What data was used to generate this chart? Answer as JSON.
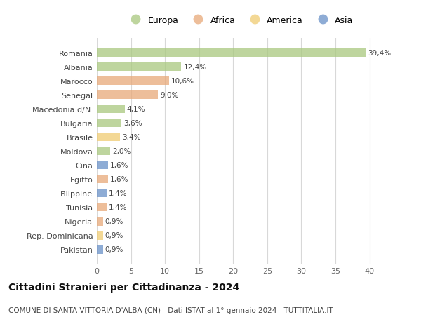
{
  "countries": [
    "Romania",
    "Albania",
    "Marocco",
    "Senegal",
    "Macedonia d/N.",
    "Bulgaria",
    "Brasile",
    "Moldova",
    "Cina",
    "Egitto",
    "Filippine",
    "Tunisia",
    "Nigeria",
    "Rep. Dominicana",
    "Pakistan"
  ],
  "values": [
    39.4,
    12.4,
    10.6,
    9.0,
    4.1,
    3.6,
    3.4,
    2.0,
    1.6,
    1.6,
    1.4,
    1.4,
    0.9,
    0.9,
    0.9
  ],
  "labels": [
    "39,4%",
    "12,4%",
    "10,6%",
    "9,0%",
    "4,1%",
    "3,6%",
    "3,4%",
    "2,0%",
    "1,6%",
    "1,6%",
    "1,4%",
    "1,4%",
    "0,9%",
    "0,9%",
    "0,9%"
  ],
  "continents": [
    "Europa",
    "Europa",
    "Africa",
    "Africa",
    "Europa",
    "Europa",
    "America",
    "Europa",
    "Asia",
    "Africa",
    "Asia",
    "Africa",
    "Africa",
    "America",
    "Asia"
  ],
  "continent_colors": {
    "Europa": "#a8c87e",
    "Africa": "#e8a878",
    "America": "#f0cc72",
    "Asia": "#6890c8"
  },
  "legend_order": [
    "Europa",
    "Africa",
    "America",
    "Asia"
  ],
  "title": "Cittadini Stranieri per Cittadinanza - 2024",
  "subtitle": "COMUNE DI SANTA VITTORIA D'ALBA (CN) - Dati ISTAT al 1° gennaio 2024 - TUTTITALIA.IT",
  "xlim": [
    0,
    42
  ],
  "xticks": [
    0,
    5,
    10,
    15,
    20,
    25,
    30,
    35,
    40
  ],
  "bg_color": "#ffffff",
  "grid_color": "#d8d8d8",
  "bar_alpha": 0.75
}
